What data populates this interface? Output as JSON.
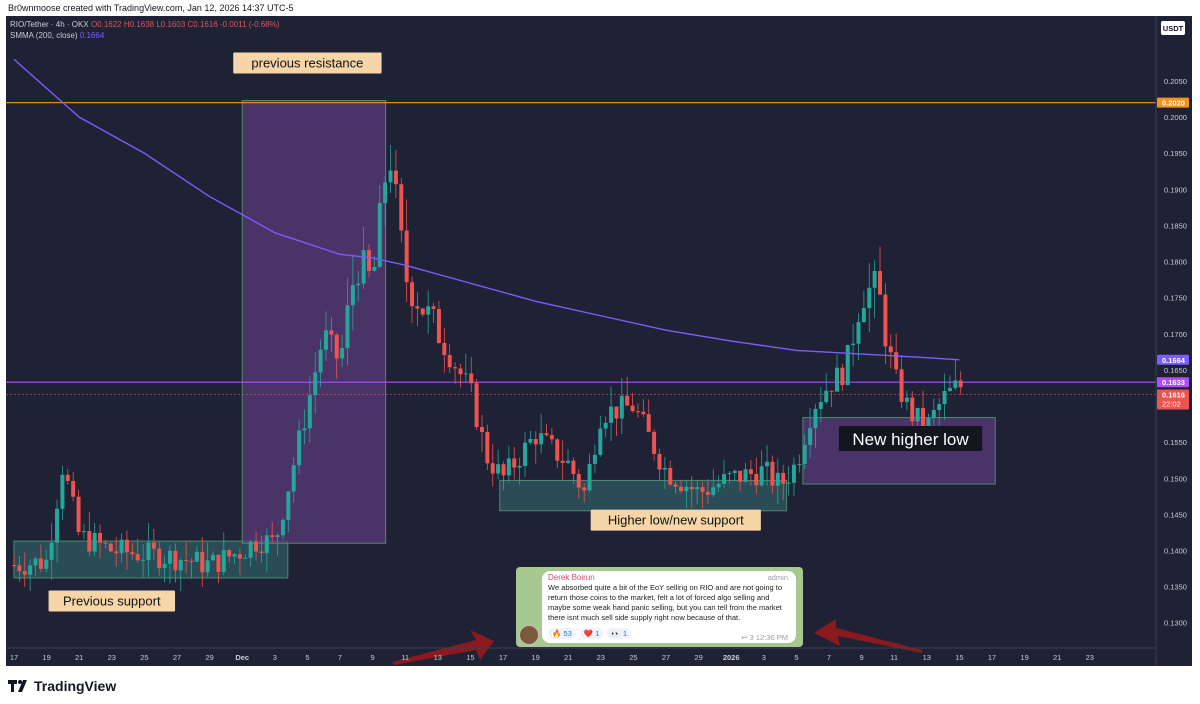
{
  "header_line": "Br0wnmoose created with TradingView.com, Jan 12, 2026 14:37 UTC-5",
  "legend": {
    "symbol": "RIO/Tether · 4h · OKX",
    "open": "O0.1622",
    "high": "H0.1638",
    "low": "L0.1603",
    "close": "C0.1616",
    "change": "-0.0011 (-0.68%)",
    "indicator": "SMMA (200, close)",
    "indicator_value": "0.1664"
  },
  "brand": "TradingView",
  "colors": {
    "background": "#1e2234",
    "up_candle": "#26a69a",
    "down_candle": "#ef5350",
    "smma": "#7b5cff",
    "resistance_line": "#f7931a",
    "current_line": "#b04dff",
    "box_purple": "#5a3a78",
    "box_teal": "#2f5b62"
  },
  "chart_data": {
    "type": "candlestick",
    "quote_currency": "USDT",
    "y_ticks": [
      "0.1300",
      "0.1350",
      "0.1400",
      "0.1450",
      "0.1500",
      "0.1550",
      "0.1650",
      "0.1700",
      "0.1750",
      "0.1800",
      "0.1850",
      "0.1900",
      "0.1950",
      "0.2000",
      "0.2050"
    ],
    "ylim": [
      0.1265,
      0.214
    ],
    "x_ticks": [
      "17",
      "19",
      "21",
      "23",
      "25",
      "27",
      "29",
      "Dec",
      "3",
      "5",
      "7",
      "9",
      "11",
      "13",
      "15",
      "17",
      "19",
      "21",
      "23",
      "25",
      "27",
      "29",
      "2026",
      "3",
      "5",
      "7",
      "9",
      "11",
      "13",
      "15",
      "17",
      "19",
      "21",
      "23"
    ],
    "price_badges": [
      {
        "label": "0.2020",
        "value": 0.202,
        "color": "#f7931a"
      },
      {
        "label": "0.1664",
        "value": 0.1664,
        "color": "#7b5cff"
      },
      {
        "label": "0.1633",
        "value": 0.1633,
        "color": "#b04dff"
      },
      {
        "label": "0.1616",
        "sub": "22:02",
        "value": 0.1616,
        "color": "#ef5350"
      }
    ],
    "horizontal_lines": [
      {
        "value": 0.202,
        "color": "#f7931a"
      },
      {
        "value": 0.1633,
        "color": "#b04dff"
      }
    ],
    "zones": [
      {
        "label": "Previous support",
        "x0": 0.0,
        "x1": 8.4,
        "y0": 0.1362,
        "y1": 0.1413,
        "fill": "#2f5b62"
      },
      {
        "label": "previous resistance",
        "x0": 7.0,
        "x1": 11.4,
        "y0": 0.141,
        "y1": 0.2023,
        "fill": "#5a3a78"
      },
      {
        "label": "Higher low/new support",
        "x0": 14.9,
        "x1": 23.7,
        "y0": 0.1455,
        "y1": 0.1497,
        "fill": "#2f5b62"
      },
      {
        "label": "New higher low",
        "x0": 24.2,
        "x1": 30.1,
        "y0": 0.1492,
        "y1": 0.1584,
        "fill": "#5a3a78"
      }
    ],
    "smma_series": {
      "name": "SMMA (200, close)",
      "x": [
        0,
        2,
        4,
        6,
        8,
        10,
        11,
        12,
        14,
        16,
        18,
        20,
        22,
        24,
        26,
        28,
        29
      ],
      "y": [
        0.208,
        0.2,
        0.195,
        0.189,
        0.184,
        0.181,
        0.1805,
        0.1795,
        0.177,
        0.1745,
        0.1725,
        0.1705,
        0.169,
        0.1677,
        0.1672,
        0.1667,
        0.1664
      ]
    },
    "close_path": {
      "x": [
        0,
        1,
        1.5,
        2,
        3,
        4,
        5,
        6,
        7,
        7.5,
        8,
        9,
        9.5,
        10,
        10.5,
        11,
        11.5,
        12,
        13,
        14,
        14.5,
        15,
        16,
        17,
        17.5,
        18,
        19,
        20,
        21,
        22,
        23,
        23.5,
        24,
        24.5,
        25,
        25.5,
        26,
        26.5,
        27,
        27.5,
        28,
        28.5,
        29,
        29.2
      ],
      "y": [
        0.138,
        0.1385,
        0.152,
        0.142,
        0.14,
        0.1395,
        0.139,
        0.138,
        0.14,
        0.1415,
        0.141,
        0.16,
        0.17,
        0.166,
        0.18,
        0.177,
        0.196,
        0.178,
        0.17,
        0.162,
        0.153,
        0.15,
        0.156,
        0.152,
        0.148,
        0.159,
        0.16,
        0.151,
        0.148,
        0.15,
        0.151,
        0.149,
        0.152,
        0.16,
        0.163,
        0.165,
        0.176,
        0.176,
        0.164,
        0.159,
        0.157,
        0.161,
        0.163,
        0.1616
      ]
    },
    "annotations": [
      {
        "text": "previous resistance",
        "x": 9.0,
        "y": 0.2075,
        "style": "tag"
      },
      {
        "text": "Previous support",
        "x": 3.0,
        "y": 0.133,
        "style": "tag"
      },
      {
        "text": "Higher low/new support",
        "x": 20.3,
        "y": 0.1442,
        "style": "tag"
      },
      {
        "text": "New higher low",
        "x": 27.5,
        "y": 0.1555,
        "style": "dark"
      }
    ]
  },
  "message": {
    "author": "Derek Boirun",
    "role": "admin",
    "text": "We absorbed quite a bit of the EoY selling on RIO and are not going to return those coins to the market, felt a lot of forced algo selling and maybe some weak hand panic selling, but you can tell from the market there isnt much sell side supply right now because of that.",
    "reactions": [
      {
        "emoji": "🔥",
        "count": "53"
      },
      {
        "emoji": "❤️",
        "count": "1"
      },
      {
        "emoji": "👀",
        "count": "1"
      }
    ],
    "replies": "3",
    "time": "12:36 PM"
  }
}
